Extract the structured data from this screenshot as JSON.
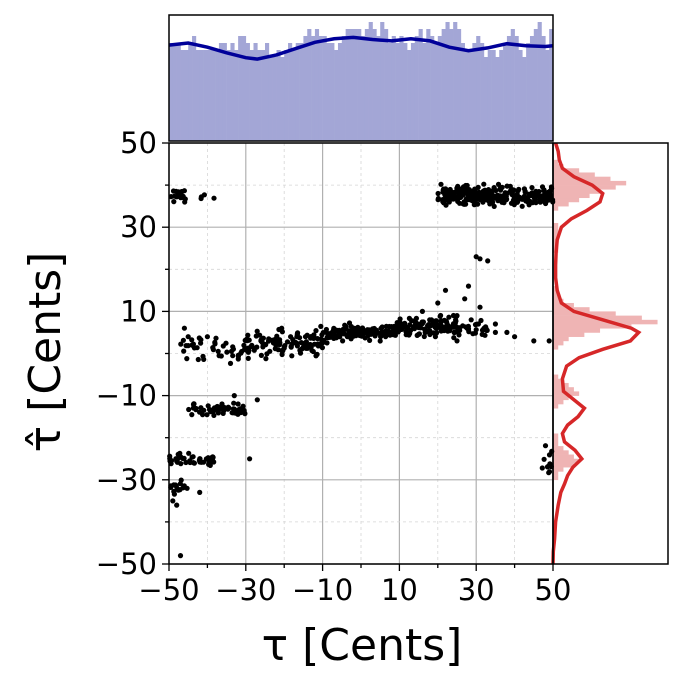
{
  "chart_data": {
    "type": "scatter",
    "xlabel": "τ [Cents]",
    "ylabel": "τ̂ [Cents]",
    "xlim": [
      -50,
      50
    ],
    "ylim": [
      -50,
      50
    ],
    "xticks": [
      -50,
      -30,
      -10,
      10,
      30,
      50
    ],
    "yticks": [
      -50,
      -30,
      -10,
      10,
      30,
      50
    ],
    "xtick_labels": [
      "−50",
      "−30",
      "−10",
      "10",
      "30",
      "50"
    ],
    "ytick_labels": [
      "−50",
      "−30",
      "−10",
      "10",
      "30",
      "50"
    ],
    "grid": true,
    "point_color": "#000000",
    "marginal_x_color": "#a3a6d6",
    "marginal_x_curve_color": "#000099",
    "marginal_y_color": "#efb4b4",
    "marginal_y_curve_color": "#d62728",
    "clusters": [
      {
        "x_range": [
          -50,
          -45
        ],
        "y_center": 37.5,
        "y_spread": 1.5,
        "n": 20
      },
      {
        "x_range": [
          -44,
          -34
        ],
        "y_center": 37,
        "y_spread": 0.5,
        "n": 4
      },
      {
        "x_range": [
          -47,
          -30
        ],
        "y_center": 1,
        "y_spread": 2.5,
        "n": 40
      },
      {
        "x_range": [
          -30,
          -10
        ],
        "y_center": 2.5,
        "y_spread": 2.5,
        "n": 110
      },
      {
        "x_range": [
          -10,
          10
        ],
        "y_center": 5,
        "y_spread": 1.5,
        "n": 140
      },
      {
        "x_range": [
          10,
          25
        ],
        "y_center": 6.5,
        "y_spread": 2,
        "n": 110
      },
      {
        "x_range": [
          25,
          33
        ],
        "y_center": 6,
        "y_spread": 1.5,
        "n": 30
      },
      {
        "x_range": [
          -45,
          -30
        ],
        "y_center": -13.5,
        "y_spread": 1.2,
        "n": 60
      },
      {
        "x_range": [
          -50,
          -38
        ],
        "y_center": -25.5,
        "y_spread": 1.2,
        "n": 45
      },
      {
        "x_range": [
          -50,
          -45
        ],
        "y_center": -31.5,
        "y_spread": 1.5,
        "n": 15
      },
      {
        "x_range": [
          20,
          50
        ],
        "y_center": 37.5,
        "y_spread": 1.8,
        "n": 260
      },
      {
        "x_range": [
          47,
          50
        ],
        "y_center": -26,
        "y_spread": 3,
        "n": 12
      }
    ],
    "extra_points": [
      [
        -47,
        -48
      ],
      [
        -42,
        -33
      ],
      [
        -29,
        -25
      ],
      [
        -33,
        -10
      ],
      [
        -32,
        -12
      ],
      [
        -27,
        -11
      ],
      [
        -46,
        6
      ],
      [
        -45,
        4
      ],
      [
        -48,
        -36
      ],
      [
        -49,
        -35
      ],
      [
        -44,
        2
      ],
      [
        -40,
        4
      ],
      [
        25,
        9
      ],
      [
        22,
        15
      ],
      [
        27,
        13
      ],
      [
        30,
        23
      ],
      [
        31,
        22.5
      ],
      [
        33,
        22
      ],
      [
        31,
        11
      ],
      [
        28,
        16
      ],
      [
        35,
        5
      ],
      [
        38,
        5
      ],
      [
        45,
        3
      ],
      [
        49,
        3
      ],
      [
        20,
        12
      ],
      [
        35,
        7
      ],
      [
        25,
        3
      ],
      [
        40,
        4
      ],
      [
        16,
        10
      ]
    ],
    "marginal_x": {
      "bins": 100,
      "counts": [
        14,
        14,
        14,
        13,
        13,
        14,
        15,
        13,
        13,
        13,
        13,
        13,
        13,
        14,
        14,
        13,
        14,
        13,
        15,
        15,
        14,
        13,
        14,
        13,
        13,
        14,
        12,
        12,
        13,
        12,
        13,
        14,
        13,
        14,
        14,
        15,
        16,
        15,
        16,
        15,
        15,
        14,
        14,
        13,
        14,
        15,
        16,
        16,
        16,
        16,
        15,
        16,
        17,
        16,
        15,
        17,
        16,
        14,
        15,
        14,
        15,
        14,
        13,
        14,
        15,
        16,
        14,
        16,
        15,
        14,
        15,
        16,
        17,
        16,
        17,
        16,
        14,
        13,
        13,
        14,
        15,
        14,
        12,
        13,
        13,
        12,
        13,
        14,
        15,
        16,
        15,
        13,
        12,
        14,
        15,
        16,
        17,
        15,
        13,
        16
      ],
      "kde": [
        [
          -50,
          13.7
        ],
        [
          -45,
          14.0
        ],
        [
          -40,
          13.4
        ],
        [
          -35,
          12.6
        ],
        [
          -30,
          11.9
        ],
        [
          -27,
          11.7
        ],
        [
          -22,
          12.3
        ],
        [
          -17,
          13.2
        ],
        [
          -12,
          14.1
        ],
        [
          -7,
          14.6
        ],
        [
          -2,
          14.8
        ],
        [
          3,
          14.5
        ],
        [
          8,
          14.3
        ],
        [
          13,
          14.6
        ],
        [
          18,
          14.3
        ],
        [
          23,
          13.4
        ],
        [
          28,
          12.9
        ],
        [
          33,
          13.3
        ],
        [
          38,
          13.9
        ],
        [
          43,
          13.6
        ],
        [
          48,
          13.5
        ],
        [
          50,
          13.6
        ]
      ]
    },
    "marginal_y": {
      "bins": 100,
      "counts": [
        0,
        0,
        0,
        0,
        0,
        0,
        0,
        0,
        0,
        0,
        0,
        0,
        0,
        0,
        0,
        0,
        0,
        0,
        0,
        0,
        1,
        1,
        2,
        4,
        5,
        4,
        3,
        2,
        1,
        1,
        1,
        0,
        0,
        0,
        0,
        0,
        0,
        1,
        2,
        3,
        5,
        4,
        3,
        2,
        1,
        0,
        0,
        0,
        0,
        0,
        0,
        1,
        2,
        3,
        6,
        9,
        15,
        20,
        17,
        12,
        7,
        4,
        2,
        1,
        1,
        1,
        0,
        0,
        0,
        0,
        0,
        0,
        0,
        0,
        1,
        1,
        1,
        1,
        1,
        1,
        1,
        0,
        0,
        0,
        1,
        3,
        5,
        7,
        9,
        12,
        14,
        11,
        8,
        5,
        2,
        1,
        0,
        0,
        0,
        0
      ],
      "kde": [
        [
          -50,
          0
        ],
        [
          -47,
          0.05
        ],
        [
          -44,
          0.3
        ],
        [
          -40,
          0.5
        ],
        [
          -36,
          1.0
        ],
        [
          -33,
          1.5
        ],
        [
          -31,
          2.2
        ],
        [
          -29,
          2.8
        ],
        [
          -27,
          3.8
        ],
        [
          -25,
          5.5
        ],
        [
          -23,
          4.2
        ],
        [
          -21,
          2.2
        ],
        [
          -19,
          1.8
        ],
        [
          -17,
          2.8
        ],
        [
          -15,
          4.8
        ],
        [
          -13,
          6.0
        ],
        [
          -11,
          4.0
        ],
        [
          -9,
          2.0
        ],
        [
          -6,
          1.8
        ],
        [
          -3,
          2.6
        ],
        [
          -1,
          5.0
        ],
        [
          1,
          9.5
        ],
        [
          3,
          14.8
        ],
        [
          5,
          16.4
        ],
        [
          6,
          15.0
        ],
        [
          8,
          9.5
        ],
        [
          10,
          4.0
        ],
        [
          12,
          1.6
        ],
        [
          15,
          0.8
        ],
        [
          18,
          0.5
        ],
        [
          21,
          0.5
        ],
        [
          24,
          0.6
        ],
        [
          27,
          0.8
        ],
        [
          30,
          1.6
        ],
        [
          32,
          3.5
        ],
        [
          34,
          6.5
        ],
        [
          36,
          9.0
        ],
        [
          38,
          9.5
        ],
        [
          40,
          7.5
        ],
        [
          42,
          4.0
        ],
        [
          44,
          1.8
        ],
        [
          46,
          1.2
        ],
        [
          48,
          1.0
        ],
        [
          50,
          0.5
        ]
      ]
    }
  }
}
